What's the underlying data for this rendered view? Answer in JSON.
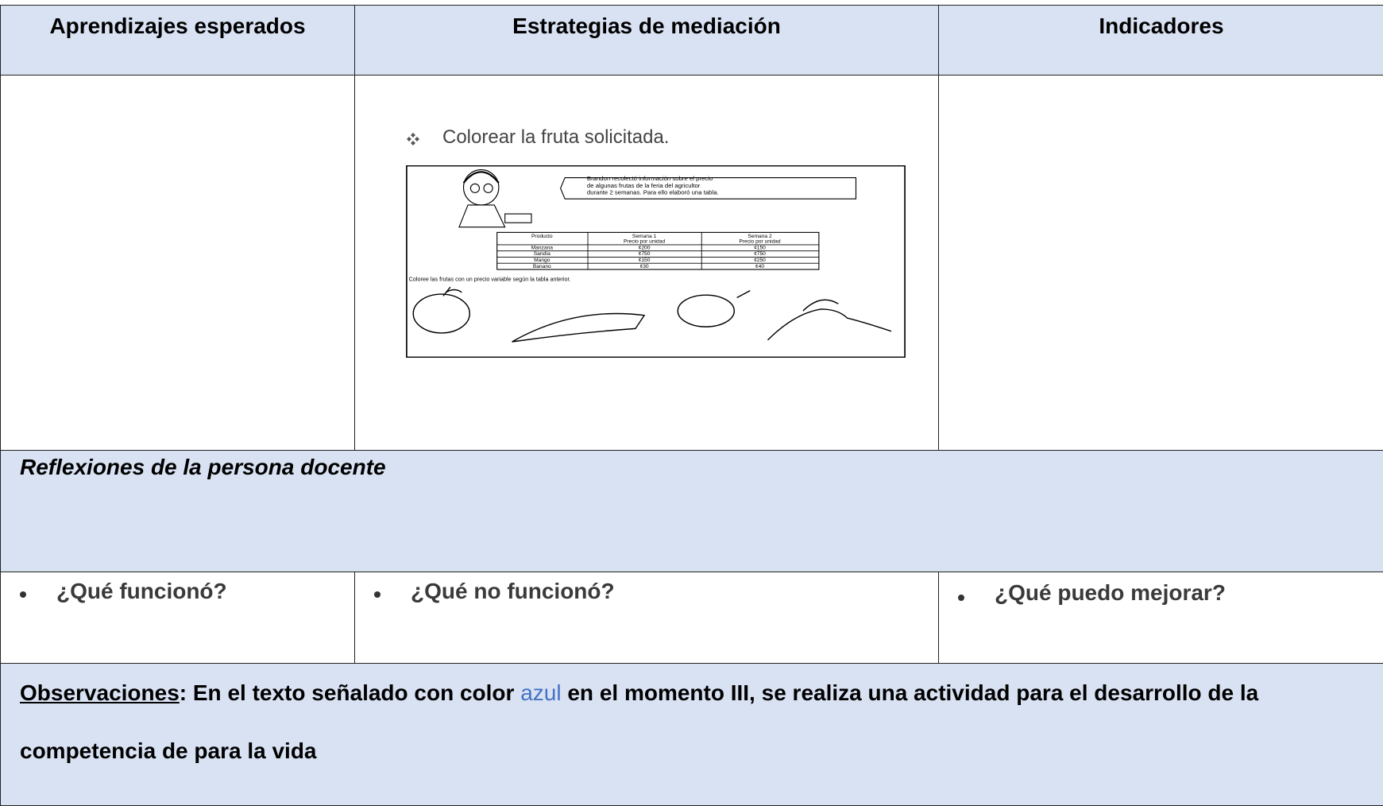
{
  "table": {
    "headers": [
      "Aprendizajes esperados",
      "Estrategias de mediación",
      "Indicadores"
    ],
    "strategy": {
      "item": "Colorear la fruta solicitada.",
      "worksheet": {
        "intro": [
          "Brandon recolectó información sobre el precio",
          "de algunas frutas de la feria del agricultor",
          "durante 2 semanas. Para ello elaboró una tabla."
        ],
        "columns": [
          [
            "Producto"
          ],
          [
            "Semana 1",
            "Precio por unidad"
          ],
          [
            "Semana 2",
            "Precio por unidad"
          ]
        ],
        "rows": [
          [
            "Manzana",
            "¢200",
            "¢150"
          ],
          [
            "Sandía",
            "¢750",
            "¢750"
          ],
          [
            "Mango",
            "¢150",
            "¢250"
          ],
          [
            "Banano",
            "¢30",
            "¢40"
          ]
        ],
        "instruction": "Coloree las frutas con un precio variable según la tabla anterior."
      }
    },
    "reflections_title": "Reflexiones de la persona docente",
    "questions": [
      "¿Qué funcionó?",
      "¿Qué no funcionó?",
      "¿Qué puedo mejorar?"
    ],
    "observations": {
      "label": "Observaciones",
      "parts": [
        ": En el texto señalado con color ",
        "azul",
        " en el momento III, se realiza una actividad para el desarrollo de la competencia de para la vida"
      ]
    }
  }
}
